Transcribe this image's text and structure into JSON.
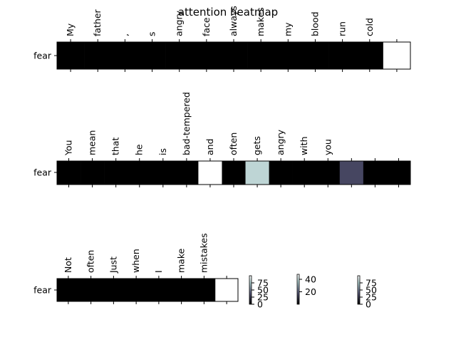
{
  "chart_data": {
    "type": "heatmap",
    "title": "attention heatmap",
    "colormap": "bone",
    "panels": [
      {
        "row_label": "fear",
        "tokens": [
          "My",
          "father",
          ",",
          "s",
          "angry",
          "face",
          "always",
          "makes",
          "my",
          "blood",
          "run",
          "cold",
          ""
        ],
        "values": [
          0,
          0,
          0,
          0,
          0,
          0,
          0,
          0,
          0,
          0,
          0,
          0,
          100
        ],
        "vmax": 100
      },
      {
        "row_label": "fear",
        "tokens": [
          "You",
          "mean",
          "that",
          "he",
          "is",
          "bad-tempered",
          "and",
          "often",
          "gets",
          "angry",
          "with",
          "you",
          "",
          "",
          ""
        ],
        "values": [
          0,
          0,
          0,
          0,
          0,
          0,
          48,
          0,
          39,
          0,
          0,
          0,
          15,
          0,
          0
        ],
        "vmax": 48
      },
      {
        "row_label": "fear",
        "tokens": [
          "Not",
          "often",
          "Just",
          "when",
          "I",
          "make",
          "mistakes",
          ""
        ],
        "values": [
          0,
          0,
          0,
          0,
          0,
          0,
          0,
          100
        ],
        "vmax": 100
      }
    ],
    "colorbars": [
      {
        "ticks": [
          "0",
          "25",
          "50",
          "75"
        ],
        "vmax": 100
      },
      {
        "ticks": [
          "20",
          "40"
        ],
        "vmax": 48
      },
      {
        "ticks": [
          "0",
          "25",
          "50",
          "75"
        ],
        "vmax": 100
      }
    ]
  }
}
